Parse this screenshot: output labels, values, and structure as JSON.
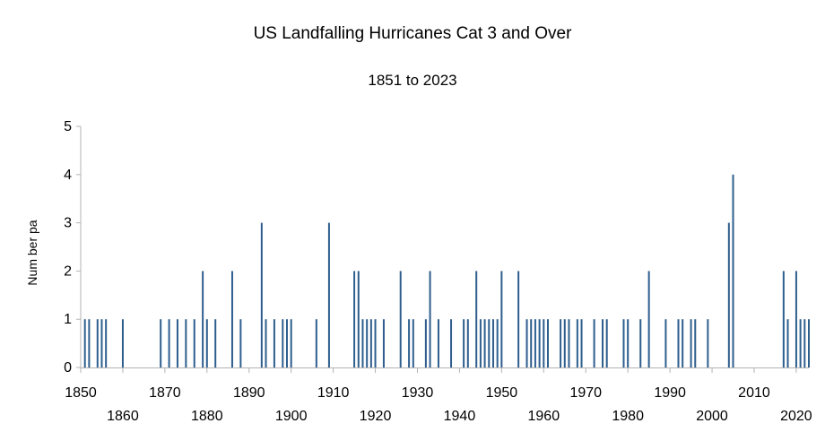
{
  "chart_data": {
    "type": "bar",
    "title": "US Landfalling Hurricanes Cat 3 and Over",
    "subtitle": "1851 to 2023",
    "xlabel": "",
    "ylabel": "Num ber pa",
    "xlim": [
      1850,
      2023
    ],
    "ylim": [
      0,
      5
    ],
    "y_ticks": [
      "0",
      "1",
      "2",
      "3",
      "4",
      "5"
    ],
    "x_ticks": [
      "1850",
      "1860",
      "1870",
      "1880",
      "1890",
      "1900",
      "1910",
      "1920",
      "1930",
      "1940",
      "1950",
      "1960",
      "1970",
      "1980",
      "1990",
      "2000",
      "2010",
      "2020"
    ],
    "grid": false,
    "legend": "none",
    "bar_color": "#2e5e8e",
    "x": [
      1851,
      1852,
      1854,
      1855,
      1856,
      1860,
      1869,
      1871,
      1873,
      1875,
      1877,
      1879,
      1880,
      1882,
      1886,
      1888,
      1893,
      1894,
      1896,
      1898,
      1899,
      1900,
      1906,
      1909,
      1915,
      1916,
      1917,
      1918,
      1919,
      1920,
      1922,
      1926,
      1928,
      1929,
      1932,
      1933,
      1935,
      1938,
      1941,
      1942,
      1944,
      1945,
      1946,
      1947,
      1948,
      1949,
      1950,
      1954,
      1956,
      1957,
      1958,
      1959,
      1960,
      1961,
      1964,
      1965,
      1966,
      1968,
      1969,
      1972,
      1974,
      1975,
      1979,
      1980,
      1983,
      1985,
      1989,
      1992,
      1993,
      1995,
      1996,
      1999,
      2004,
      2005,
      2017,
      2018,
      2020,
      2021,
      2022,
      2023
    ],
    "values": [
      1,
      1,
      1,
      1,
      1,
      1,
      1,
      1,
      1,
      1,
      1,
      2,
      1,
      1,
      2,
      1,
      3,
      1,
      1,
      1,
      1,
      1,
      1,
      3,
      2,
      2,
      1,
      1,
      1,
      1,
      1,
      2,
      1,
      1,
      1,
      2,
      1,
      1,
      1,
      1,
      2,
      1,
      1,
      1,
      1,
      1,
      2,
      2,
      1,
      1,
      1,
      1,
      1,
      1,
      1,
      1,
      1,
      1,
      1,
      1,
      1,
      1,
      1,
      1,
      1,
      2,
      1,
      1,
      1,
      1,
      1,
      1,
      3,
      4,
      2,
      1,
      2,
      1,
      1,
      1
    ]
  }
}
